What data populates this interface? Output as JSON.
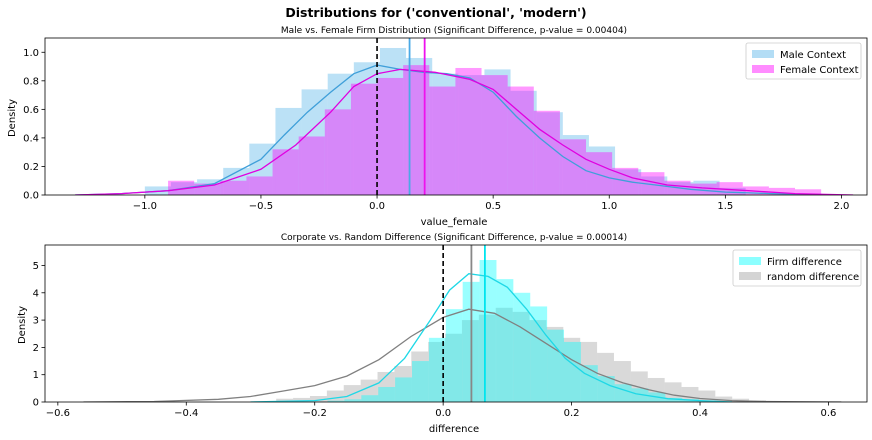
{
  "figure": {
    "title": "Distributions for ('conventional', 'modern')"
  },
  "chart_data": [
    {
      "type": "histogram",
      "title": "Male vs. Female Firm Distribution (Significant Difference, p-value = 0.00404)",
      "xlabel": "value_female",
      "ylabel": "Density",
      "xlim": [
        -1.43,
        2.11
      ],
      "ylim": [
        0,
        1.1
      ],
      "xticks": [
        -1.0,
        -0.5,
        0.0,
        0.5,
        1.0,
        1.5,
        2.0
      ],
      "xtick_labels": [
        "−1.0",
        "−0.5",
        "0.0",
        "0.5",
        "1.0",
        "1.5",
        "2.0"
      ],
      "yticks": [
        0.0,
        0.2,
        0.4,
        0.6,
        0.8,
        1.0
      ],
      "ytick_labels": [
        "0.0",
        "0.2",
        "0.4",
        "0.6",
        "0.8",
        "1.0"
      ],
      "legend_position": "top-right",
      "grid": false,
      "reference_lines": [
        {
          "x": 0.0,
          "style": "dashed",
          "color": "#000000"
        },
        {
          "x": 0.14,
          "style": "solid",
          "color": "#4aa9e6"
        },
        {
          "x": 0.205,
          "style": "solid",
          "color": "#ee11ee"
        }
      ],
      "series": [
        {
          "name": "Male Context",
          "color": "#56b4e9",
          "kde_color": "#3f9fd9",
          "bin_start": -1.0,
          "bin_width": 0.1125,
          "values": [
            0.06,
            0.09,
            0.11,
            0.19,
            0.36,
            0.61,
            0.74,
            0.85,
            0.93,
            1.03,
            0.96,
            0.85,
            0.84,
            0.88,
            0.73,
            0.58,
            0.42,
            0.34,
            0.18,
            0.13,
            0.09,
            0.1,
            0.05
          ],
          "kde": [
            [
              -1.3,
              0.0
            ],
            [
              -1.1,
              0.01
            ],
            [
              -0.9,
              0.03
            ],
            [
              -0.7,
              0.08
            ],
            [
              -0.5,
              0.25
            ],
            [
              -0.4,
              0.42
            ],
            [
              -0.3,
              0.58
            ],
            [
              -0.2,
              0.72
            ],
            [
              -0.1,
              0.85
            ],
            [
              0.0,
              0.91
            ],
            [
              0.1,
              0.88
            ],
            [
              0.2,
              0.86
            ],
            [
              0.3,
              0.85
            ],
            [
              0.4,
              0.82
            ],
            [
              0.5,
              0.72
            ],
            [
              0.6,
              0.55
            ],
            [
              0.7,
              0.4
            ],
            [
              0.8,
              0.27
            ],
            [
              0.9,
              0.17
            ],
            [
              1.0,
              0.12
            ],
            [
              1.1,
              0.09
            ],
            [
              1.2,
              0.07
            ],
            [
              1.35,
              0.04
            ],
            [
              1.5,
              0.02
            ],
            [
              1.7,
              0.01
            ],
            [
              2.0,
              0.0
            ]
          ]
        },
        {
          "name": "Female Context",
          "color": "#ff00ff",
          "kde_color": "#e000e0",
          "bin_start": -0.9,
          "bin_width": 0.1125,
          "values": [
            0.1,
            0.08,
            0.1,
            0.13,
            0.32,
            0.41,
            0.6,
            0.78,
            0.82,
            0.91,
            0.76,
            0.89,
            0.84,
            0.76,
            0.59,
            0.39,
            0.3,
            0.19,
            0.16,
            0.1,
            0.08,
            0.09,
            0.06,
            0.05,
            0.04
          ],
          "kde": [
            [
              -1.3,
              0.0
            ],
            [
              -1.1,
              0.01
            ],
            [
              -0.9,
              0.03
            ],
            [
              -0.7,
              0.07
            ],
            [
              -0.5,
              0.18
            ],
            [
              -0.35,
              0.35
            ],
            [
              -0.2,
              0.58
            ],
            [
              -0.1,
              0.76
            ],
            [
              0.0,
              0.85
            ],
            [
              0.1,
              0.88
            ],
            [
              0.25,
              0.86
            ],
            [
              0.4,
              0.81
            ],
            [
              0.5,
              0.74
            ],
            [
              0.6,
              0.6
            ],
            [
              0.7,
              0.46
            ],
            [
              0.8,
              0.35
            ],
            [
              0.9,
              0.25
            ],
            [
              1.0,
              0.18
            ],
            [
              1.1,
              0.12
            ],
            [
              1.25,
              0.07
            ],
            [
              1.4,
              0.05
            ],
            [
              1.6,
              0.03
            ],
            [
              1.8,
              0.01
            ],
            [
              2.05,
              0.0
            ]
          ]
        }
      ]
    },
    {
      "type": "histogram",
      "title": "Corporate vs. Random Difference (Significant Difference, p-value = 0.00014)",
      "xlabel": "difference",
      "ylabel": "Density",
      "xlim": [
        -0.62,
        0.66
      ],
      "ylim": [
        0,
        5.75
      ],
      "xticks": [
        -0.6,
        -0.4,
        -0.2,
        0.0,
        0.2,
        0.4,
        0.6
      ],
      "xtick_labels": [
        "−0.6",
        "−0.4",
        "−0.2",
        "0.0",
        "0.2",
        "0.4",
        "0.6"
      ],
      "yticks": [
        0,
        1,
        2,
        3,
        4,
        5
      ],
      "ytick_labels": [
        "0",
        "1",
        "2",
        "3",
        "4",
        "5"
      ],
      "legend_position": "top-right",
      "grid": false,
      "reference_lines": [
        {
          "x": 0.0,
          "style": "dashed",
          "color": "#000000"
        },
        {
          "x": 0.044,
          "style": "solid",
          "color": "#888888"
        },
        {
          "x": 0.065,
          "style": "solid",
          "color": "#00e5ee"
        }
      ],
      "series": [
        {
          "name": "random difference",
          "color": "#a0a0a0",
          "kde_color": "#808080",
          "bin_start": -0.26,
          "bin_width": 0.0263,
          "values": [
            0.12,
            0.15,
            0.22,
            0.42,
            0.62,
            0.82,
            1.1,
            1.32,
            1.85,
            2.2,
            2.5,
            3.0,
            3.2,
            3.45,
            3.3,
            3.0,
            2.75,
            2.35,
            2.2,
            1.8,
            1.5,
            1.12,
            0.88,
            0.72,
            0.55,
            0.42,
            0.2,
            0.12,
            0.06
          ],
          "kde": [
            [
              -0.56,
              0.0
            ],
            [
              -0.45,
              0.02
            ],
            [
              -0.35,
              0.1
            ],
            [
              -0.3,
              0.2
            ],
            [
              -0.25,
              0.4
            ],
            [
              -0.2,
              0.6
            ],
            [
              -0.15,
              0.95
            ],
            [
              -0.1,
              1.55
            ],
            [
              -0.05,
              2.4
            ],
            [
              0.0,
              3.1
            ],
            [
              0.04,
              3.4
            ],
            [
              0.08,
              3.25
            ],
            [
              0.12,
              2.75
            ],
            [
              0.16,
              2.15
            ],
            [
              0.2,
              1.55
            ],
            [
              0.24,
              1.05
            ],
            [
              0.28,
              0.7
            ],
            [
              0.32,
              0.45
            ],
            [
              0.36,
              0.25
            ],
            [
              0.4,
              0.13
            ],
            [
              0.45,
              0.05
            ],
            [
              0.5,
              0.02
            ],
            [
              0.62,
              0.0
            ]
          ]
        },
        {
          "name": "Firm difference",
          "color": "#00ffff",
          "kde_color": "#1fd8e6",
          "bin_start": -0.18,
          "bin_width": 0.0263,
          "values": [
            0.05,
            0.1,
            0.25,
            0.55,
            0.9,
            1.5,
            2.35,
            3.4,
            4.4,
            5.2,
            4.5,
            4.0,
            3.5,
            2.65,
            2.2,
            1.35,
            0.95,
            0.65,
            0.5,
            0.35,
            0.15,
            0.1,
            0.05
          ],
          "kde": [
            [
              -0.3,
              0.0
            ],
            [
              -0.2,
              0.05
            ],
            [
              -0.15,
              0.2
            ],
            [
              -0.1,
              0.7
            ],
            [
              -0.06,
              1.6
            ],
            [
              -0.02,
              3.0
            ],
            [
              0.01,
              4.1
            ],
            [
              0.04,
              4.7
            ],
            [
              0.07,
              4.6
            ],
            [
              0.1,
              4.2
            ],
            [
              0.13,
              3.4
            ],
            [
              0.16,
              2.45
            ],
            [
              0.19,
              1.6
            ],
            [
              0.22,
              1.05
            ],
            [
              0.26,
              0.6
            ],
            [
              0.3,
              0.3
            ],
            [
              0.35,
              0.12
            ],
            [
              0.4,
              0.05
            ],
            [
              0.45,
              0.0
            ]
          ]
        }
      ]
    }
  ]
}
